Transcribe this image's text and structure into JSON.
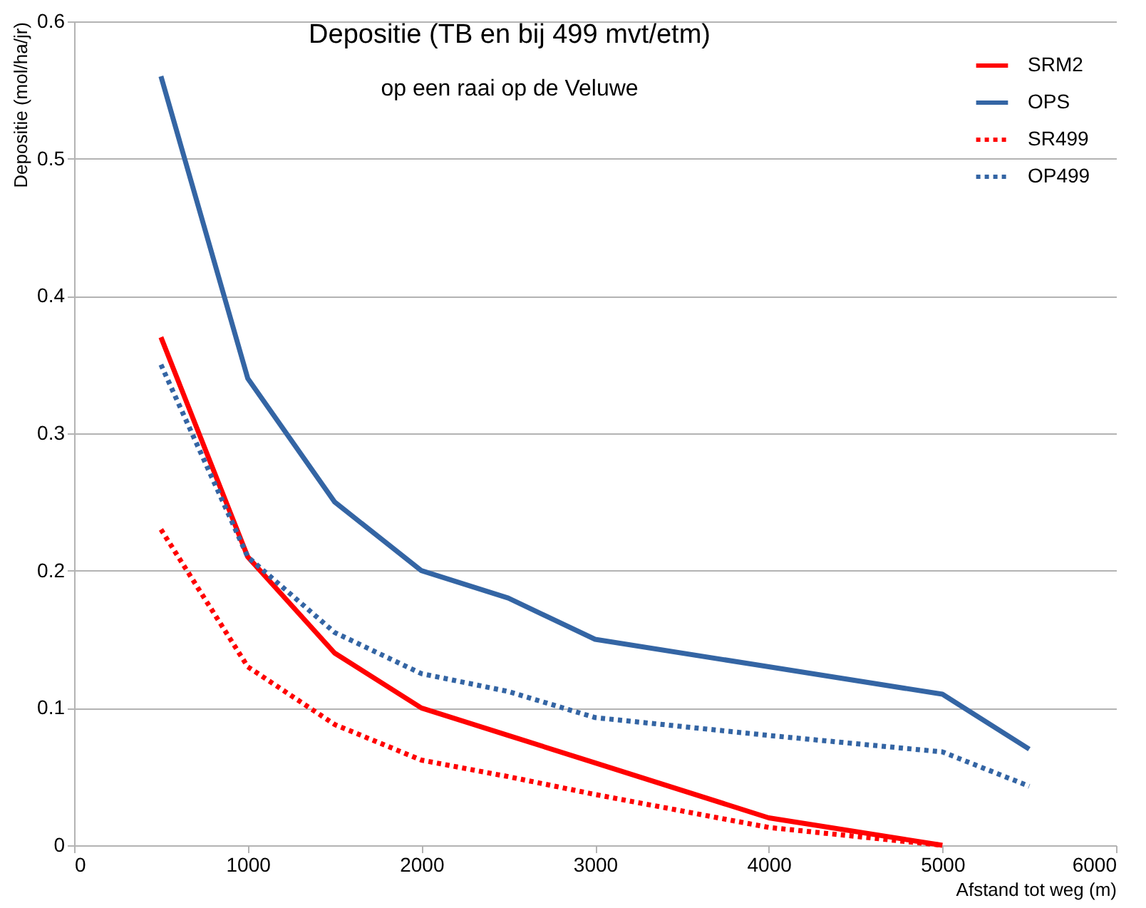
{
  "chart_data": {
    "type": "line",
    "title": "Depositie (TB en bij 499 mvt/etm)",
    "subtitle": "op een raai op de Veluwe",
    "xlabel": "Afstand tot weg (m)",
    "ylabel": "Depositie (mol/ha/jr)",
    "series": [
      {
        "name": "SRM2",
        "color": "#ff0000",
        "line_style": "solid",
        "x": [
          500,
          1000,
          1500,
          2000,
          2500,
          3000,
          4000,
          5000
        ],
        "values": [
          0.37,
          0.21,
          0.14,
          0.1,
          0.08,
          0.06,
          0.02,
          0.0
        ]
      },
      {
        "name": "OPS",
        "color": "#3465a4",
        "line_style": "solid",
        "x": [
          500,
          1000,
          1500,
          2000,
          2500,
          3000,
          4000,
          5000,
          5500
        ],
        "values": [
          0.56,
          0.34,
          0.25,
          0.2,
          0.18,
          0.15,
          0.13,
          0.11,
          0.07
        ]
      },
      {
        "name": "SR499",
        "color": "#ff0000",
        "line_style": "dotted",
        "x": [
          500,
          1000,
          1500,
          2000,
          2500,
          3000,
          4000,
          5000
        ],
        "values": [
          0.23,
          0.13,
          0.088,
          0.062,
          0.05,
          0.037,
          0.013,
          0.0
        ]
      },
      {
        "name": "OP499",
        "color": "#3465a4",
        "line_style": "dotted",
        "x": [
          500,
          1000,
          1500,
          2000,
          2500,
          3000,
          4000,
          5000,
          5500
        ],
        "values": [
          0.35,
          0.21,
          0.155,
          0.125,
          0.112,
          0.093,
          0.08,
          0.068,
          0.043
        ]
      }
    ],
    "xlim": [
      0,
      6000
    ],
    "xticks": [
      0,
      1000,
      2000,
      3000,
      4000,
      5000,
      6000
    ],
    "ylim": [
      0,
      0.6
    ],
    "yticks": [
      0,
      0.1,
      0.2,
      0.3,
      0.4,
      0.5,
      0.6
    ],
    "grid": "y",
    "legend": "top right",
    "marker": "none"
  }
}
